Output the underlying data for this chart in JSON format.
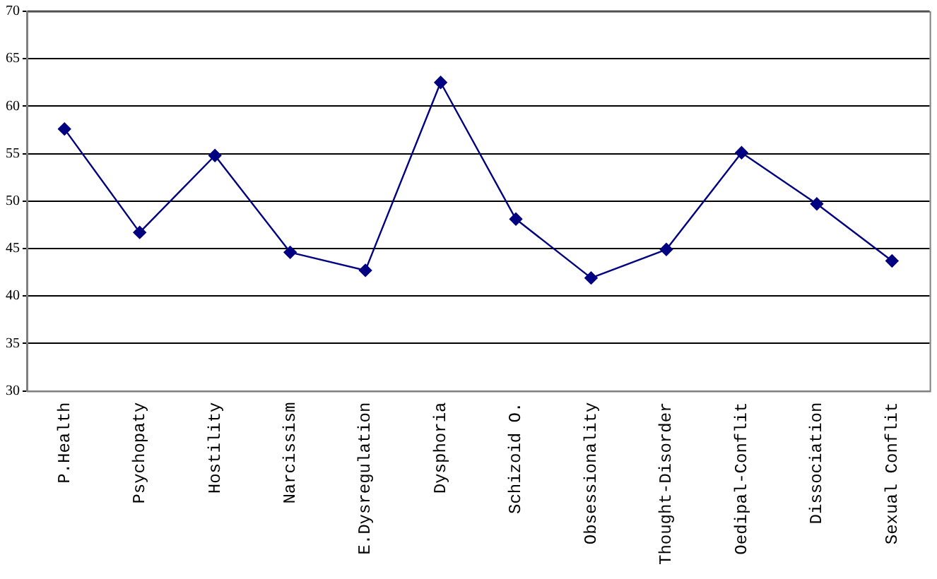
{
  "chart_data": {
    "type": "line",
    "categories": [
      "P.Health",
      "Psychopaty",
      "Hostility",
      "Narcissism",
      "E.Dysregulation",
      "Dysphoria",
      "Schizoid O.",
      "Obsessionality",
      "Thought-Disorder",
      "Oedipal-Conflit",
      "Dissociation",
      "Sexual Conflit"
    ],
    "series": [
      {
        "color": "#000080",
        "values": [
          57.6,
          46.7,
          54.8,
          44.6,
          42.7,
          62.5,
          48.1,
          41.9,
          44.9,
          55.1,
          49.7,
          43.7
        ]
      }
    ],
    "ylim": [
      30,
      70
    ],
    "yticks": [
      30,
      35,
      40,
      45,
      50,
      55,
      60,
      65,
      70
    ],
    "grid": "y",
    "legend": false,
    "marker": "diamond",
    "line_style": "solid"
  }
}
